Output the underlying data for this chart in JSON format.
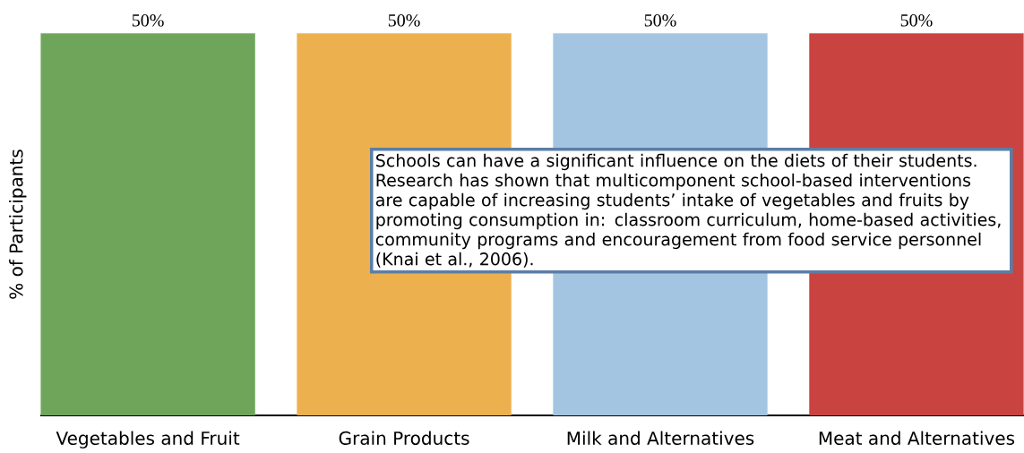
{
  "chart_data": {
    "type": "bar",
    "ylabel": "% of Participants",
    "categories": [
      "Vegetables and Fruit",
      "Grain Products",
      "Milk and Alternatives",
      "Meat and Alternatives"
    ],
    "values": [
      50,
      50,
      50,
      50
    ],
    "colors": [
      "#6fa55b",
      "#ecb04e",
      "#a4c5e1",
      "#c94340"
    ],
    "value_labels": [
      "50%",
      "50%",
      "50%",
      "50%"
    ],
    "annotations": [
      "Schools can have a significant influence on the diets of their students. Research has shown that multicomponent school-based interventions are capable of increasing students’ intake of vegetables and fruits by promoting consumption in: classroom curriculum, home-based activities, community programs and encouragement from food service personnel (Knai et al., 2006)."
    ]
  }
}
